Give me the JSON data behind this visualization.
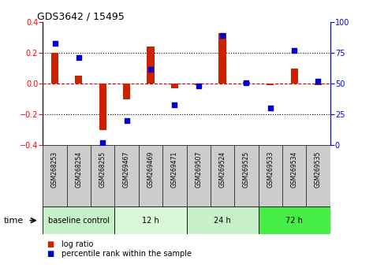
{
  "title": "GDS3642 / 15495",
  "samples": [
    "GSM268253",
    "GSM268254",
    "GSM268255",
    "GSM269467",
    "GSM269469",
    "GSM269471",
    "GSM269507",
    "GSM269524",
    "GSM269525",
    "GSM269533",
    "GSM269534",
    "GSM269535"
  ],
  "log_ratio": [
    0.2,
    0.05,
    -0.3,
    -0.1,
    0.24,
    -0.03,
    -0.01,
    0.33,
    0.01,
    -0.01,
    0.1,
    -0.01
  ],
  "percentile_rank": [
    83,
    71,
    2,
    20,
    62,
    33,
    48,
    89,
    51,
    30,
    77,
    52
  ],
  "groups": [
    {
      "label": "baseline control",
      "start": 0,
      "end": 3,
      "color": "#c8f0c8"
    },
    {
      "label": "12 h",
      "start": 3,
      "end": 6,
      "color": "#d8f8d8"
    },
    {
      "label": "24 h",
      "start": 6,
      "end": 9,
      "color": "#c8f0c8"
    },
    {
      "label": "72 h",
      "start": 9,
      "end": 12,
      "color": "#44ee44"
    }
  ],
  "bar_color": "#cc2200",
  "dot_color": "#0000cc",
  "ylim_left": [
    -0.4,
    0.4
  ],
  "ylim_right": [
    0,
    100
  ],
  "yticks_left": [
    -0.4,
    -0.2,
    0.0,
    0.2,
    0.4
  ],
  "yticks_right": [
    0,
    25,
    50,
    75,
    100
  ],
  "dotted_lines": [
    -0.2,
    0.2
  ],
  "zero_line_color": "#cc0000",
  "bg_color": "#ffffff",
  "label_bg": "#cccccc",
  "legend_log_ratio": "log ratio",
  "legend_percentile": "percentile rank within the sample",
  "time_label": "time"
}
